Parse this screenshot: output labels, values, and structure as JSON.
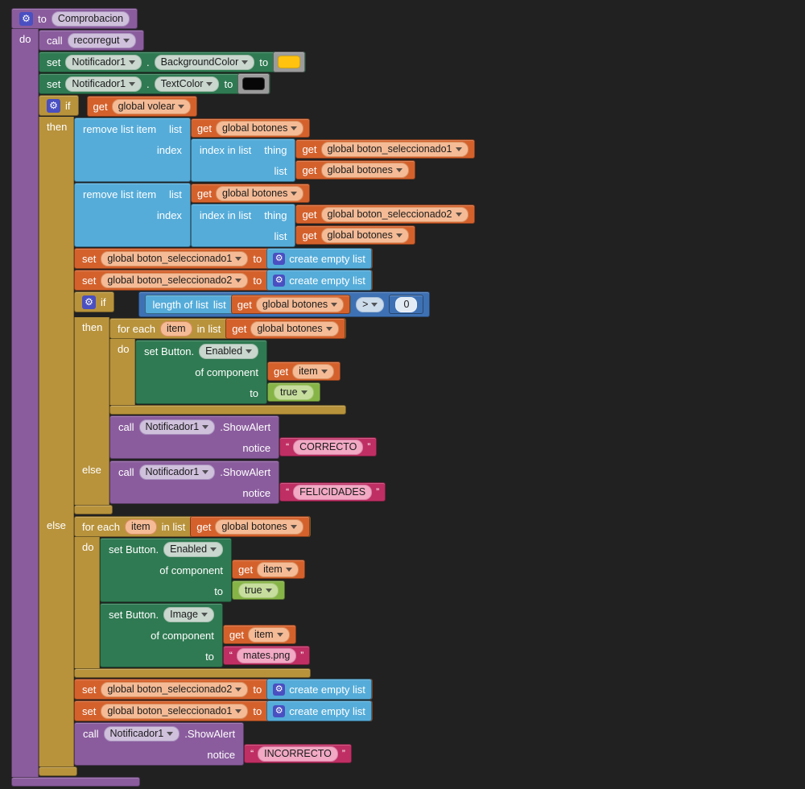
{
  "background": "#212121",
  "colors": {
    "procedure": "#8a5c9d",
    "control": "#b8933c",
    "variables": "#d4612c",
    "lists": "#55acd9",
    "math": "#3e71b4",
    "logic": "#86b446",
    "component_set": "#2f7a52",
    "text": "#bf2f63",
    "color_frame": "#9b9b9b",
    "gear": "#4a4fc1",
    "swatch_yellow": "#ffc30f",
    "swatch_black": "#070707"
  },
  "procedure": {
    "to": "to",
    "name": "Comprobacion",
    "do": "do"
  },
  "call_recorregut": {
    "call": "call",
    "name": "recorregut"
  },
  "set_background": {
    "set": "set",
    "component": "Notificador1",
    "dot": ".",
    "property": "BackgroundColor",
    "to": "to"
  },
  "set_textcolor": {
    "set": "set",
    "component": "Notificador1",
    "dot": ".",
    "property": "TextColor",
    "to": "to"
  },
  "outer_if": {
    "if": "if",
    "then": "then",
    "else": "else",
    "cond": {
      "get": "get",
      "var": "global volear"
    }
  },
  "remove1": {
    "title": "remove list item",
    "list": "list",
    "index": "index",
    "list_val": {
      "get": "get",
      "var": "global botones"
    },
    "inner": {
      "title": "index in list",
      "thing": "thing",
      "list": "list",
      "thing_val": {
        "get": "get",
        "var": "global boton_seleccionado1"
      },
      "list_val": {
        "get": "get",
        "var": "global botones"
      }
    }
  },
  "remove2": {
    "title": "remove list item",
    "list": "list",
    "index": "index",
    "list_val": {
      "get": "get",
      "var": "global botones"
    },
    "inner": {
      "title": "index in list",
      "thing": "thing",
      "list": "list",
      "thing_val": {
        "get": "get",
        "var": "global boton_seleccionado2"
      },
      "list_val": {
        "get": "get",
        "var": "global botones"
      }
    }
  },
  "set_sel1": {
    "set": "set",
    "var": "global boton_seleccionado1",
    "to": "to",
    "value": "create empty list"
  },
  "set_sel2": {
    "set": "set",
    "var": "global boton_seleccionado2",
    "to": "to",
    "value": "create empty list"
  },
  "inner_if": {
    "if": "if",
    "then": "then",
    "else": "else",
    "cond": {
      "length": "length of list",
      "list": "list",
      "get": "get",
      "var": "global botones",
      "op": ">",
      "num": "0"
    }
  },
  "foreach_then": {
    "for_each": "for each",
    "item": "item",
    "in_list": "in list",
    "get": "get",
    "var": "global botones",
    "do": "do"
  },
  "set_enabled_then": {
    "set_button": "set Button.",
    "property": "Enabled",
    "of_component": "of component",
    "get": "get",
    "item": "item",
    "to": "to",
    "value": "true"
  },
  "call_correcto": {
    "call": "call",
    "component": "Notificador1",
    "method": ".ShowAlert",
    "notice": "notice",
    "open": "“",
    "text": "CORRECTO",
    "close": "”"
  },
  "call_felicidades": {
    "call": "call",
    "component": "Notificador1",
    "method": ".ShowAlert",
    "notice": "notice",
    "open": "“",
    "text": "FELICIDADES",
    "close": "”"
  },
  "foreach_else": {
    "for_each": "for each",
    "item": "item",
    "in_list": "in list",
    "get": "get",
    "var": "global botones",
    "do": "do"
  },
  "set_enabled_else": {
    "set_button": "set Button.",
    "property": "Enabled",
    "of_component": "of component",
    "get": "get",
    "item": "item",
    "to": "to",
    "value": "true"
  },
  "set_image_else": {
    "set_button": "set Button.",
    "property": "Image",
    "of_component": "of component",
    "get": "get",
    "item": "item",
    "to": "to",
    "open": "“",
    "text": "mates.png",
    "close": "”"
  },
  "set_sel2_else": {
    "set": "set",
    "var": "global boton_seleccionado2",
    "to": "to",
    "value": "create empty list"
  },
  "set_sel1_else": {
    "set": "set",
    "var": "global boton_seleccionado1",
    "to": "to",
    "value": "create empty list"
  },
  "call_incorrecto": {
    "call": "call",
    "component": "Notificador1",
    "method": ".ShowAlert",
    "notice": "notice",
    "open": "“",
    "text": "INCORRECTO",
    "close": "”"
  }
}
